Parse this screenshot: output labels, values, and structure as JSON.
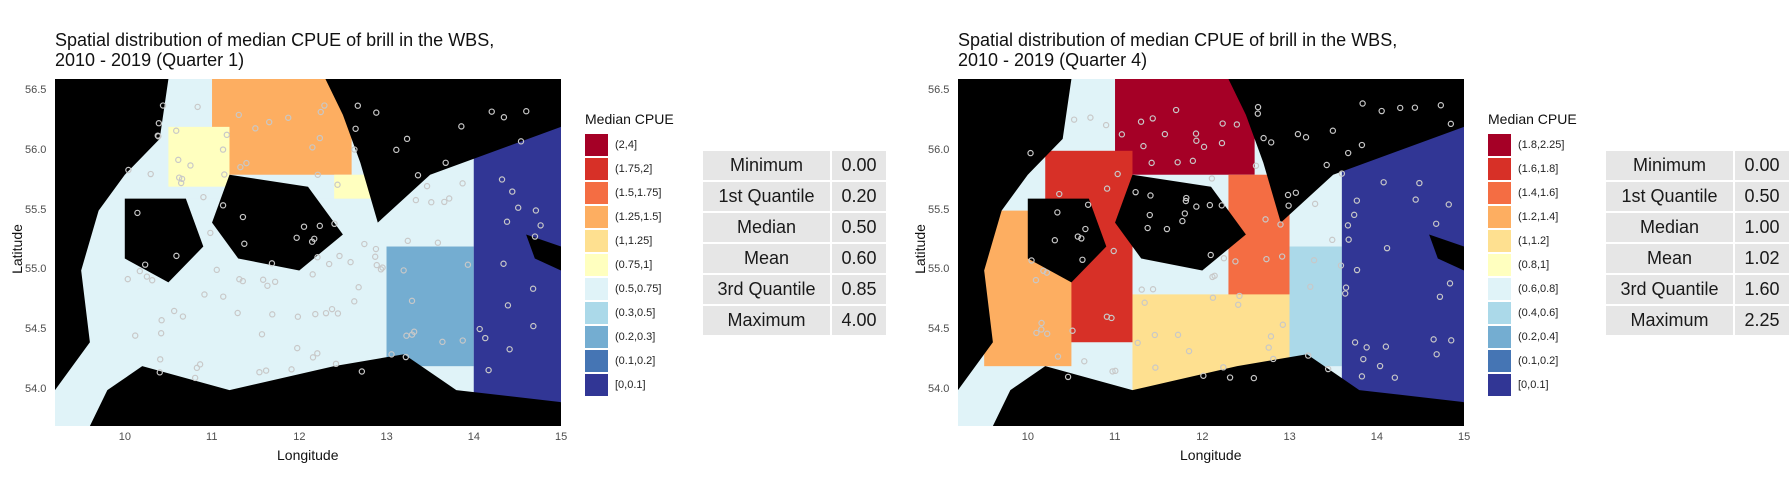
{
  "colors": {
    "background": "#ffffff",
    "land": "#000000",
    "survey_point": "#c8c8c8",
    "legend_scale": [
      "#a50026",
      "#d73027",
      "#f46d43",
      "#fdae61",
      "#fee090",
      "#ffffbf",
      "#e0f3f8",
      "#abd9e9",
      "#74add1",
      "#4575b4",
      "#313695"
    ]
  },
  "chart_data": [
    {
      "type": "heatmap",
      "title": [
        "Spatial distribution of median CPUE of brill in the WBS,",
        "2010 - 2019 (Quarter 1)"
      ],
      "xlabel": "Longitude",
      "ylabel": "Latitude",
      "xlim": [
        9.2,
        15.0
      ],
      "ylim": [
        53.7,
        56.6
      ],
      "x_ticks": [
        "10",
        "11",
        "12",
        "13",
        "14",
        "15"
      ],
      "y_ticks": [
        "54.0",
        "54.5",
        "55.0",
        "55.5",
        "56.0",
        "56.5"
      ],
      "legend_title": "Median CPUE",
      "legend_placement": "right",
      "legend": [
        "(2,4]",
        "(1.75,2]",
        "(1.5,1.75]",
        "(1.25,1.5]",
        "(1,1.25]",
        "(0.75,1]",
        "(0.5,0.75]",
        "(0.3,0.5]",
        "(0.2,0.3]",
        "(0.1,0.2]",
        "[0,0.1]"
      ],
      "zones": [
        {
          "lon": [
            11.0,
            12.6
          ],
          "lat": [
            55.8,
            56.6
          ],
          "bin": "(1.25,1.5]"
        },
        {
          "lon": [
            10.5,
            11.2
          ],
          "lat": [
            55.7,
            56.2
          ],
          "bin": "(0.75,1]"
        },
        {
          "lon": [
            12.4,
            13.0
          ],
          "lat": [
            55.2,
            55.8
          ],
          "bin": "(0.75,1]"
        },
        {
          "lon": [
            9.5,
            13.2
          ],
          "lat": [
            53.9,
            55.6
          ],
          "bin": "(0.5,0.75]"
        },
        {
          "lon": [
            13.0,
            14.0
          ],
          "lat": [
            54.2,
            55.2
          ],
          "bin": "(0.2,0.3]"
        },
        {
          "lon": [
            14.0,
            15.0
          ],
          "lat": [
            53.9,
            56.2
          ],
          "bin": "[0,0.1]"
        }
      ],
      "stats": [
        {
          "name": "Minimum",
          "value": "0.00"
        },
        {
          "name": "1st Quantile",
          "value": "0.20"
        },
        {
          "name": "Median",
          "value": "0.50"
        },
        {
          "name": "Mean",
          "value": "0.60"
        },
        {
          "name": "3rd Quantile",
          "value": "0.85"
        },
        {
          "name": "Maximum",
          "value": "4.00"
        }
      ]
    },
    {
      "type": "heatmap",
      "title": [
        "Spatial distribution of median CPUE of brill in the WBS,",
        "2010 - 2019 (Quarter 4)"
      ],
      "xlabel": "Longitude",
      "ylabel": "Latitude",
      "xlim": [
        9.2,
        15.0
      ],
      "ylim": [
        53.7,
        56.6
      ],
      "x_ticks": [
        "10",
        "11",
        "12",
        "13",
        "14",
        "15"
      ],
      "y_ticks": [
        "54.0",
        "54.5",
        "55.0",
        "55.5",
        "56.0",
        "56.5"
      ],
      "legend_title": "Median CPUE",
      "legend_placement": "right",
      "legend": [
        "(1.8,2.25]",
        "(1.6,1.8]",
        "(1.4,1.6]",
        "(1.2,1.4]",
        "(1,1.2]",
        "(0.8,1]",
        "(0.6,0.8]",
        "(0.4,0.6]",
        "(0.2,0.4]",
        "(0.1,0.2]",
        "[0,0.1]"
      ],
      "zones": [
        {
          "lon": [
            11.0,
            12.6
          ],
          "lat": [
            55.8,
            56.6
          ],
          "bin": "(1.8,2.25]"
        },
        {
          "lon": [
            10.2,
            11.2
          ],
          "lat": [
            54.4,
            56.0
          ],
          "bin": "(1.6,1.8]"
        },
        {
          "lon": [
            12.3,
            13.0
          ],
          "lat": [
            54.4,
            55.8
          ],
          "bin": "(1.4,1.6]"
        },
        {
          "lon": [
            9.5,
            10.5
          ],
          "lat": [
            54.2,
            55.5
          ],
          "bin": "(1.2,1.4]"
        },
        {
          "lon": [
            11.2,
            13.2
          ],
          "lat": [
            53.9,
            54.8
          ],
          "bin": "(1,1.2]"
        },
        {
          "lon": [
            13.0,
            13.6
          ],
          "lat": [
            54.2,
            55.2
          ],
          "bin": "(0.4,0.6]"
        },
        {
          "lon": [
            13.6,
            15.0
          ],
          "lat": [
            53.9,
            56.2
          ],
          "bin": "[0,0.1]"
        }
      ],
      "stats": [
        {
          "name": "Minimum",
          "value": "0.00"
        },
        {
          "name": "1st Quantile",
          "value": "0.50"
        },
        {
          "name": "Median",
          "value": "1.00"
        },
        {
          "name": "Mean",
          "value": "1.02"
        },
        {
          "name": "3rd Quantile",
          "value": "1.60"
        },
        {
          "name": "Maximum",
          "value": "2.25"
        }
      ]
    }
  ]
}
